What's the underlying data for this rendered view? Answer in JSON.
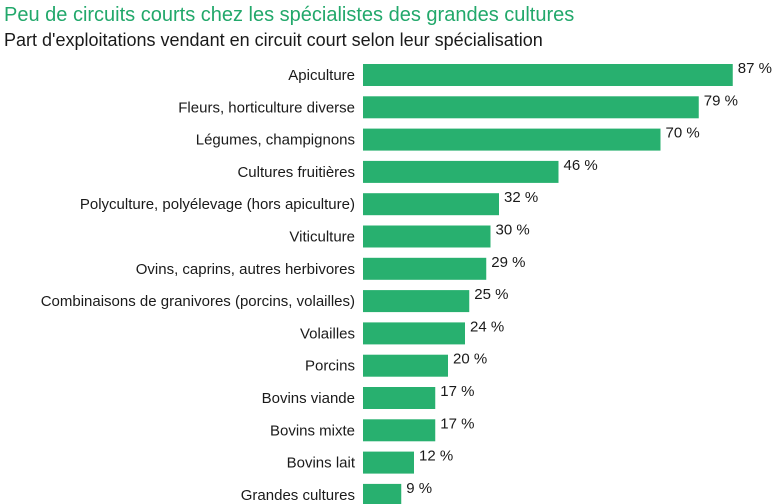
{
  "title": "Peu de circuits courts chez les spécialistes des grandes cultures",
  "subtitle": "Part d'exploitations vendant en circuit court selon leur spécialisation",
  "colors": {
    "bar": "#28b06f",
    "title": "#22a86b",
    "text": "#1a1a1a"
  },
  "chart_data": {
    "type": "bar",
    "orientation": "horizontal",
    "title": "Peu de circuits courts chez les spécialistes des grandes cultures",
    "subtitle": "Part d'exploitations vendant en circuit court selon leur spécialisation",
    "xlim": [
      0,
      87
    ],
    "grid": false,
    "categories": [
      "Apiculture",
      "Fleurs, horticulture diverse",
      "Légumes, champignons",
      "Cultures fruitières",
      "Polyculture, polyélevage (hors apiculture)",
      "Viticulture",
      "Ovins, caprins, autres herbivores",
      "Combinaisons de granivores (porcins, volailles)",
      "Volailles",
      "Porcins",
      "Bovins viande",
      "Bovins mixte",
      "Bovins lait",
      "Grandes cultures"
    ],
    "values": [
      87,
      79,
      70,
      46,
      32,
      30,
      29,
      25,
      24,
      20,
      17,
      17,
      12,
      9
    ],
    "value_labels": [
      "87 %",
      "79 %",
      "70 %",
      "46 %",
      "32 %",
      "30 %",
      "29 %",
      "25 %",
      "24 %",
      "20 %",
      "17 %",
      "17 %",
      "12 %",
      "9 %"
    ]
  }
}
